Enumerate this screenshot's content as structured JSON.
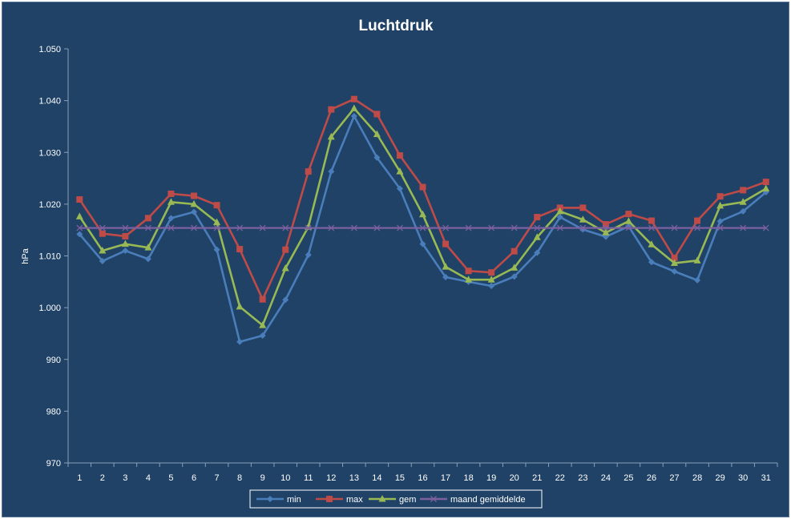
{
  "chart_data": {
    "type": "line",
    "title": "Luchtdruk",
    "ylabel": "hPa",
    "xlabel": "",
    "ylim": [
      970,
      1050
    ],
    "yticks": [
      970,
      980,
      990,
      1000,
      1010,
      1020,
      1030,
      1040,
      1050
    ],
    "ytick_labels": [
      "970",
      "980",
      "990",
      "1.000",
      "1.010",
      "1.020",
      "1.030",
      "1.040",
      "1.050"
    ],
    "categories": [
      "1",
      "2",
      "3",
      "4",
      "5",
      "6",
      "7",
      "8",
      "9",
      "10",
      "11",
      "12",
      "13",
      "14",
      "15",
      "16",
      "17",
      "18",
      "19",
      "20",
      "21",
      "22",
      "23",
      "24",
      "25",
      "26",
      "27",
      "28",
      "29",
      "30",
      "31"
    ],
    "grid": false,
    "legend_position": "bottom",
    "series": [
      {
        "name": "min",
        "color": "#4a7ebb",
        "marker": "diamond",
        "values": [
          1014.2,
          1009.0,
          1011.0,
          1009.4,
          1017.3,
          1018.5,
          1011.2,
          993.4,
          994.6,
          1001.5,
          1010.2,
          1026.3,
          1037.0,
          1029.0,
          1023.0,
          1012.3,
          1005.9,
          1005.0,
          1004.2,
          1006.0,
          1010.6,
          1017.5,
          1015.1,
          1013.7,
          1015.7,
          1008.8,
          1007.0,
          1005.3,
          1016.7,
          1018.6,
          1022.3
        ]
      },
      {
        "name": "max",
        "color": "#be4b48",
        "marker": "square",
        "values": [
          1020.9,
          1014.3,
          1013.8,
          1017.3,
          1022.0,
          1021.6,
          1019.8,
          1011.3,
          1001.6,
          1011.2,
          1026.3,
          1038.3,
          1040.3,
          1037.4,
          1029.4,
          1023.3,
          1012.3,
          1007.1,
          1006.8,
          1010.9,
          1017.5,
          1019.3,
          1019.3,
          1016.1,
          1018.1,
          1016.8,
          1009.6,
          1016.8,
          1021.5,
          1022.7,
          1024.3
        ]
      },
      {
        "name": "gem",
        "color": "#98b954",
        "marker": "triangle",
        "values": [
          1017.6,
          1011.0,
          1012.3,
          1011.6,
          1020.4,
          1020.0,
          1016.5,
          1000.2,
          996.6,
          1007.6,
          1015.6,
          1033.0,
          1038.5,
          1033.5,
          1026.3,
          1018.0,
          1007.9,
          1005.4,
          1005.4,
          1007.7,
          1013.6,
          1018.6,
          1017.0,
          1014.5,
          1016.7,
          1012.2,
          1008.6,
          1009.1,
          1019.7,
          1020.4,
          1023.0
        ]
      },
      {
        "name": "maand gemiddelde",
        "color": "#7d60a0",
        "marker": "x",
        "values": [
          1015.4,
          1015.4,
          1015.4,
          1015.4,
          1015.4,
          1015.4,
          1015.4,
          1015.4,
          1015.4,
          1015.4,
          1015.4,
          1015.4,
          1015.4,
          1015.4,
          1015.4,
          1015.4,
          1015.4,
          1015.4,
          1015.4,
          1015.4,
          1015.4,
          1015.4,
          1015.4,
          1015.4,
          1015.4,
          1015.4,
          1015.4,
          1015.4,
          1015.4,
          1015.4,
          1015.4
        ]
      }
    ]
  }
}
